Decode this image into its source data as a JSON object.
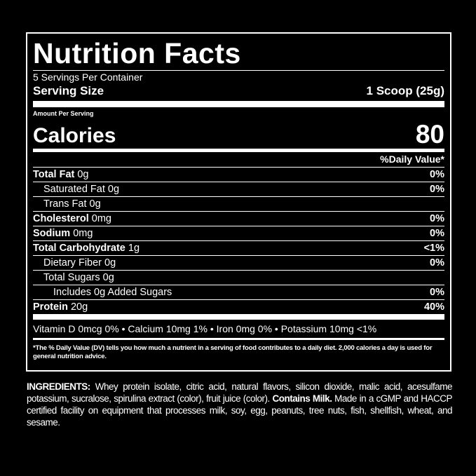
{
  "title": "Nutrition Facts",
  "servings_per_container": "5 Servings Per Container",
  "serving_size_label": "Serving Size",
  "serving_size_value": "1 Scoop (25g)",
  "amount_per_serving": "Amount Per Serving",
  "calories_label": "Calories",
  "calories_value": "80",
  "daily_value_header": "%Daily Value*",
  "nutrients": [
    {
      "name": "Total Fat",
      "amount": " 0g",
      "dv": "0%",
      "bold": true,
      "indent": 0
    },
    {
      "name": "Saturated Fat",
      "amount": " 0g",
      "dv": "0%",
      "bold": false,
      "indent": 1
    },
    {
      "name": "Trans Fat",
      "amount": " 0g",
      "dv": "",
      "bold": false,
      "indent": 1
    },
    {
      "name": "Cholesterol",
      "amount": " 0mg",
      "dv": "0%",
      "bold": true,
      "indent": 0
    },
    {
      "name": "Sodium",
      "amount": " 0mg",
      "dv": "0%",
      "bold": true,
      "indent": 0
    },
    {
      "name": "Total Carbohydrate",
      "amount": " 1g",
      "dv": "<1%",
      "bold": true,
      "indent": 0
    },
    {
      "name": "Dietary Fiber",
      "amount": " 0g",
      "dv": "0%",
      "bold": false,
      "indent": 1
    },
    {
      "name": "Total Sugars",
      "amount": " 0g",
      "dv": "",
      "bold": false,
      "indent": 1
    },
    {
      "name": "Includes 0g Added Sugars",
      "amount": "",
      "dv": "0%",
      "bold": false,
      "indent": 2
    },
    {
      "name": "Protein",
      "amount": " 20g",
      "dv": "40%",
      "bold": true,
      "indent": 0
    }
  ],
  "vitamins": "Vitamin D 0mcg 0% • Calcium 10mg 1% • Iron 0mg 0% • Potassium 10mg <1%",
  "footnote": "*The % Daily Value (DV) tells you how much a nutrient in a serving of food contributes to a daily diet. 2,000 calories a day is used for general nutrition advice.",
  "ingredients": {
    "label": "INGREDIENTS:",
    "text": " Whey protein isolate, citric acid, natural flavors, silicon dioxide, malic acid, acesulfame potassium, sucralose, spirulina extract (color), fruit juice (color). ",
    "allergen": "Contains Milk.",
    "facility": " Made in a cGMP and HACCP certified facility on equipment that processes milk, soy, egg, peanuts, tree nuts, fish, shellfish, wheat, and sesame."
  }
}
